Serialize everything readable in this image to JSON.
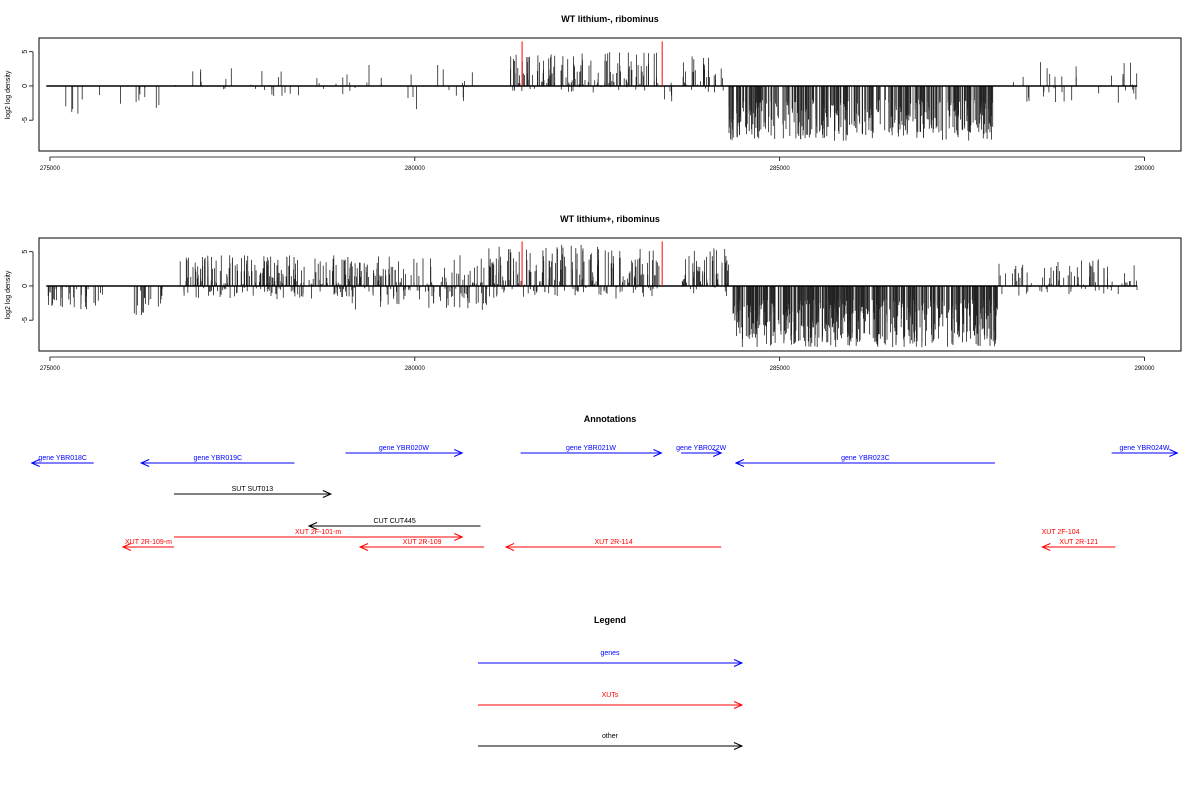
{
  "colors": {
    "gene": "#0000ff",
    "xut": "#ff0000",
    "other": "#000000",
    "marker": "#ff0000"
  },
  "chart_data": [
    {
      "type": "bar",
      "title": "WT lithium-, ribominus",
      "ylabel": "log2 log density",
      "xlim": [
        274850,
        290500
      ],
      "ylim": [
        -9.5,
        7
      ],
      "xticks": [
        275000,
        280000,
        285000,
        290000
      ],
      "yticks": [
        5,
        0,
        -5
      ],
      "markers_x": [
        281470,
        283390
      ],
      "profile": [
        {
          "from": 274950,
          "to": 276500,
          "density": 0.12,
          "min": -4.5,
          "max": 0
        },
        {
          "from": 276700,
          "to": 279500,
          "density": 0.16,
          "min": -2.5,
          "max": 3.5
        },
        {
          "from": 279500,
          "to": 280800,
          "density": 0.15,
          "min": -3.5,
          "max": 3.5
        },
        {
          "from": 281300,
          "to": 283350,
          "density": 0.9,
          "min": -1,
          "max": 5
        },
        {
          "from": 283400,
          "to": 283550,
          "density": 0.5,
          "min": -2.5,
          "max": 1
        },
        {
          "from": 283650,
          "to": 284250,
          "density": 0.8,
          "min": -1,
          "max": 4.5
        },
        {
          "from": 284300,
          "to": 287950,
          "density": 1.5,
          "min": -8,
          "max": -2
        },
        {
          "from": 288200,
          "to": 289900,
          "density": 0.25,
          "min": -2.5,
          "max": 3.5
        }
      ]
    },
    {
      "type": "bar",
      "title": "WT lithium+, ribominus",
      "ylabel": "log2 log density",
      "xlim": [
        274850,
        290500
      ],
      "ylim": [
        -9.5,
        7
      ],
      "xticks": [
        275000,
        280000,
        285000,
        290000
      ],
      "yticks": [
        5,
        0,
        -5
      ],
      "markers_x": [
        281470,
        283390
      ],
      "profile": [
        {
          "from": 274950,
          "to": 275800,
          "density": 0.5,
          "min": -3.5,
          "max": 0
        },
        {
          "from": 276150,
          "to": 276550,
          "density": 0.6,
          "min": -4.5,
          "max": 0
        },
        {
          "from": 276780,
          "to": 279100,
          "density": 1.4,
          "min": -2,
          "max": 4.5
        },
        {
          "from": 279100,
          "to": 281000,
          "density": 1.2,
          "min": -3.5,
          "max": 4.5
        },
        {
          "from": 281000,
          "to": 283350,
          "density": 1.2,
          "min": -2,
          "max": 6
        },
        {
          "from": 283650,
          "to": 284300,
          "density": 1.3,
          "min": -1.5,
          "max": 5.5
        },
        {
          "from": 284350,
          "to": 288000,
          "density": 1.8,
          "min": -9,
          "max": -2
        },
        {
          "from": 288000,
          "to": 289900,
          "density": 0.6,
          "min": -1.5,
          "max": 4
        }
      ]
    }
  ],
  "annotations": {
    "title": "Annotations",
    "items": [
      {
        "label": "gene YBR018C",
        "start": 275600,
        "end": 274750,
        "row": 1,
        "kind": "gene"
      },
      {
        "label": "gene YBR019C",
        "start": 278350,
        "end": 276250,
        "row": 1,
        "kind": "gene"
      },
      {
        "label": "gene YBR020W",
        "start": 279050,
        "end": 280650,
        "row": 0,
        "kind": "gene"
      },
      {
        "label": "gene YBR021W",
        "start": 281450,
        "end": 283380,
        "row": 0,
        "kind": "gene"
      },
      {
        "label": "gene YBR022W",
        "start": 283650,
        "end": 284200,
        "row": 0,
        "kind": "gene"
      },
      {
        "label": "gene YBR023C",
        "start": 287950,
        "end": 284400,
        "row": 1,
        "kind": "gene"
      },
      {
        "label": "gene YBR024W",
        "start": 289550,
        "end": 290450,
        "row": 0,
        "kind": "gene"
      },
      {
        "label": "SUT SUT013",
        "start": 276700,
        "end": 278850,
        "row": 2,
        "kind": "other"
      },
      {
        "label": "CUT CUT445",
        "start": 280900,
        "end": 278550,
        "row": 3,
        "kind": "other"
      },
      {
        "label": "XUT 2F-101-m",
        "start": 276700,
        "end": 280650,
        "row": 4,
        "kind": "xut"
      },
      {
        "label": "XUT 2R-109-m",
        "start": 276700,
        "end": 276000,
        "row": 5,
        "kind": "xut"
      },
      {
        "label": "XUT 2R-109",
        "start": 280950,
        "end": 279250,
        "row": 5,
        "kind": "xut"
      },
      {
        "label": "XUT 2R-114",
        "start": 284200,
        "end": 281250,
        "row": 5,
        "kind": "xut"
      },
      {
        "label": "XUT 2F-104",
        "start": 288850,
        "end": 288850,
        "row": 4,
        "kind": "xut",
        "nolines": true
      },
      {
        "label": "XUT 2R-121",
        "start": 289600,
        "end": 288600,
        "row": 5,
        "kind": "xut"
      }
    ]
  },
  "legend": {
    "title": "Legend",
    "items": [
      {
        "label": "genes",
        "kind": "gene"
      },
      {
        "label": "XUTs",
        "kind": "xut"
      },
      {
        "label": "other",
        "kind": "other"
      }
    ]
  }
}
